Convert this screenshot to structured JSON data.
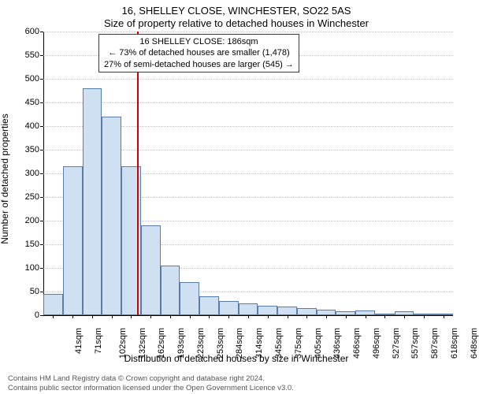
{
  "title_line1": "16, SHELLEY CLOSE, WINCHESTER, SO22 5AS",
  "title_line2": "Size of property relative to detached houses in Winchester",
  "y_axis_label": "Number of detached properties",
  "x_axis_label": "Distribution of detached houses by size in Winchester",
  "footer_line1": "Contains HM Land Registry data © Crown copyright and database right 2024.",
  "footer_line2": "Contains public sector information licensed under the Open Government Licence v3.0.",
  "annotation": {
    "line1": "16 SHELLEY CLOSE: 186sqm",
    "line2": "← 73% of detached houses are smaller (1,478)",
    "line3": "27% of semi-detached houses are larger (545) →"
  },
  "chart": {
    "type": "bar",
    "ylim": [
      0,
      600
    ],
    "ytick_step": 50,
    "x_categories": [
      "41sqm",
      "71sqm",
      "102sqm",
      "132sqm",
      "162sqm",
      "193sqm",
      "223sqm",
      "253sqm",
      "284sqm",
      "314sqm",
      "345sqm",
      "375sqm",
      "405sqm",
      "436sqm",
      "466sqm",
      "496sqm",
      "527sqm",
      "557sqm",
      "587sqm",
      "618sqm",
      "648sqm"
    ],
    "values": [
      45,
      315,
      480,
      420,
      315,
      190,
      105,
      70,
      40,
      30,
      25,
      20,
      18,
      15,
      12,
      8,
      10,
      3,
      8,
      2,
      3
    ],
    "bar_fill": "#cfe0f3",
    "bar_stroke": "#5b7ba8",
    "grid_color": "#c0c0c0",
    "background_color": "#ffffff",
    "marker_x_index": 4.8,
    "marker_color": "#cc0000",
    "bar_width_ratio": 1.0
  }
}
